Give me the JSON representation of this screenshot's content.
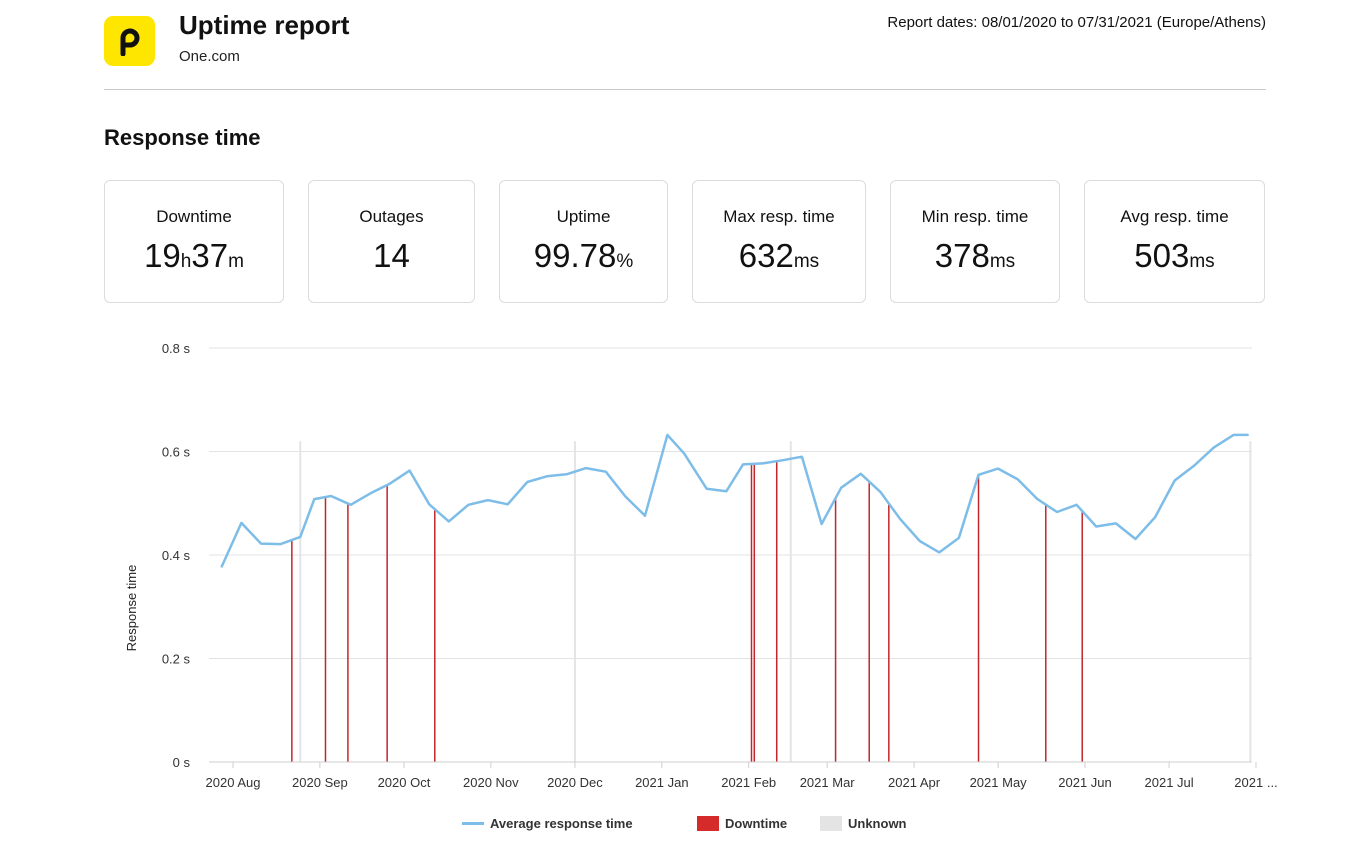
{
  "header": {
    "title": "Uptime report",
    "monitor": "One.com",
    "report_dates": "Report dates: 08/01/2020 to 07/31/2021 (Europe/Athens)",
    "logo_letter": "p",
    "logo_color": "#ffe600"
  },
  "section_title": "Response time",
  "stats": [
    {
      "label": "Downtime",
      "parts": [
        [
          "19",
          "n"
        ],
        [
          "h",
          "u"
        ],
        [
          "37",
          "n"
        ],
        [
          "m",
          "u"
        ]
      ]
    },
    {
      "label": "Outages",
      "parts": [
        [
          "14",
          "n"
        ]
      ]
    },
    {
      "label": "Uptime",
      "parts": [
        [
          "99.78",
          "n"
        ],
        [
          "%",
          "u"
        ]
      ]
    },
    {
      "label": "Max resp. time",
      "parts": [
        [
          "632",
          "n"
        ],
        [
          "ms",
          "u"
        ]
      ]
    },
    {
      "label": "Min resp. time",
      "parts": [
        [
          "378",
          "n"
        ],
        [
          "ms",
          "u"
        ]
      ]
    },
    {
      "label": "Avg resp. time",
      "parts": [
        [
          "503",
          "n"
        ],
        [
          "ms",
          "u"
        ]
      ]
    }
  ],
  "chart_data": {
    "type": "line",
    "title": "Response time",
    "ylabel": "Response time",
    "xlabel": "",
    "ylim": [
      0,
      0.8
    ],
    "ylim_unit": "s",
    "y_ticks": [
      {
        "value": 0,
        "label": "0  s"
      },
      {
        "value": 0.2,
        "label": "0.2  s"
      },
      {
        "value": 0.4,
        "label": "0.4  s"
      },
      {
        "value": 0.6,
        "label": "0.6  s"
      },
      {
        "value": 0.8,
        "label": "0.8  s"
      }
    ],
    "x_domain": [
      0,
      367
    ],
    "x_ticks": [
      {
        "day": 0,
        "label": "2020 Aug"
      },
      {
        "day": 31,
        "label": "2020 Sep"
      },
      {
        "day": 61,
        "label": "2020 Oct"
      },
      {
        "day": 92,
        "label": "2020 Nov"
      },
      {
        "day": 122,
        "label": "2020 Dec"
      },
      {
        "day": 153,
        "label": "2021 Jan"
      },
      {
        "day": 184,
        "label": "2021 Feb"
      },
      {
        "day": 212,
        "label": "2021 Mar"
      },
      {
        "day": 243,
        "label": "2021 Apr"
      },
      {
        "day": 273,
        "label": "2021 May"
      },
      {
        "day": 304,
        "label": "2021 Jun"
      },
      {
        "day": 334,
        "label": "2021 Jul"
      },
      {
        "day": 365,
        "label": "2021 ..."
      }
    ],
    "series": [
      {
        "name": "Average response time",
        "color": "#7dbde8",
        "days": [
          -4,
          3,
          10,
          17,
          24,
          29,
          35,
          42,
          49,
          56,
          63,
          70,
          77,
          84,
          91,
          98,
          105,
          112,
          119,
          126,
          133,
          140,
          147,
          155,
          161,
          169,
          176,
          182,
          189,
          196,
          203,
          210,
          217,
          224,
          231,
          238,
          245,
          252,
          259,
          266,
          273,
          280,
          287,
          294,
          301,
          308,
          315,
          322,
          329,
          336,
          343,
          350,
          357,
          362
        ],
        "values": [
          0.378,
          0.462,
          0.422,
          0.421,
          0.435,
          0.508,
          0.514,
          0.497,
          0.519,
          0.538,
          0.563,
          0.498,
          0.465,
          0.497,
          0.506,
          0.498,
          0.541,
          0.552,
          0.556,
          0.568,
          0.561,
          0.513,
          0.476,
          0.632,
          0.596,
          0.528,
          0.523,
          0.575,
          0.577,
          0.583,
          0.59,
          0.46,
          0.53,
          0.557,
          0.522,
          0.47,
          0.427,
          0.405,
          0.433,
          0.555,
          0.567,
          0.546,
          0.508,
          0.483,
          0.497,
          0.455,
          0.461,
          0.431,
          0.473,
          0.544,
          0.573,
          0.608,
          0.632,
          0.632
        ]
      }
    ],
    "downtime_days": [
      21,
      33,
      41,
      55,
      72,
      185,
      186,
      194,
      215,
      227,
      234,
      266,
      290,
      303
    ],
    "unknown_days": [
      24,
      122,
      199,
      363
    ],
    "legend": [
      {
        "label": "Average response time",
        "kind": "line",
        "color": "#7dbde8"
      },
      {
        "label": "Downtime",
        "kind": "box",
        "color": "#d62b2b"
      },
      {
        "label": "Unknown",
        "kind": "box",
        "color": "#e4e4e4"
      }
    ]
  }
}
